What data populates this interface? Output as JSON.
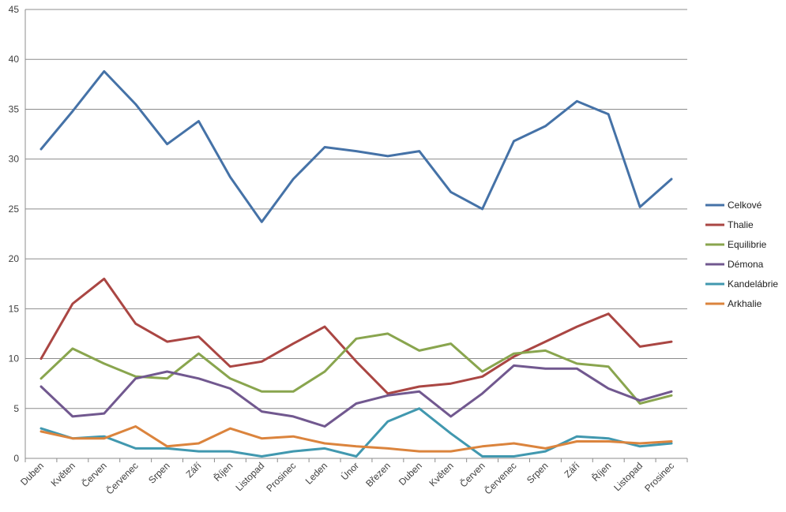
{
  "chart_data": {
    "type": "line",
    "categories": [
      "Duben",
      "Květen",
      "Červen",
      "Červenec",
      "Srpen",
      "Září",
      "Říjen",
      "Listopad",
      "Prosinec",
      "Leden",
      "Únor",
      "Březen",
      "Duben",
      "Květen",
      "Červen",
      "Červenec",
      "Srpen",
      "Září",
      "Říjen",
      "Listopad",
      "Prosinec"
    ],
    "ylim": [
      0,
      45
    ],
    "yticks": [
      0,
      5,
      10,
      15,
      20,
      25,
      30,
      35,
      40,
      45
    ],
    "grid": true,
    "legend_position": "right",
    "series": [
      {
        "name": "Celkové",
        "color": "#4572A7",
        "values": [
          31.0,
          34.8,
          38.8,
          35.5,
          31.5,
          33.8,
          28.2,
          23.7,
          28.0,
          31.2,
          30.8,
          30.3,
          30.8,
          26.7,
          25.0,
          31.8,
          33.3,
          35.8,
          34.5,
          25.2,
          28.0
        ]
      },
      {
        "name": "Thalie",
        "color": "#AA4643",
        "values": [
          10.0,
          15.5,
          18.0,
          13.5,
          11.7,
          12.2,
          9.2,
          9.7,
          11.5,
          13.2,
          9.7,
          6.5,
          7.2,
          7.5,
          8.2,
          10.2,
          11.7,
          13.2,
          14.5,
          11.2,
          11.7
        ]
      },
      {
        "name": "Equilibrie",
        "color": "#89A54E",
        "values": [
          8.0,
          11.0,
          9.5,
          8.2,
          8.0,
          10.5,
          8.0,
          6.7,
          6.7,
          8.7,
          12.0,
          12.5,
          10.8,
          11.5,
          8.7,
          10.5,
          10.8,
          9.5,
          9.2,
          5.5,
          6.3
        ]
      },
      {
        "name": "Démona",
        "color": "#71588F",
        "values": [
          7.2,
          4.2,
          4.5,
          8.0,
          8.7,
          8.0,
          7.0,
          4.7,
          4.2,
          3.2,
          5.5,
          6.3,
          6.7,
          4.2,
          6.5,
          9.3,
          9.0,
          9.0,
          7.0,
          5.8,
          6.7
        ]
      },
      {
        "name": "Kandelábrie",
        "color": "#4198AF",
        "values": [
          3.0,
          2.0,
          2.2,
          1.0,
          1.0,
          0.7,
          0.7,
          0.2,
          0.7,
          1.0,
          0.2,
          3.7,
          5.0,
          2.5,
          0.2,
          0.2,
          0.7,
          2.2,
          2.0,
          1.2,
          1.5
        ]
      },
      {
        "name": "Arkhalie",
        "color": "#DB843D",
        "values": [
          2.7,
          2.0,
          2.0,
          3.2,
          1.2,
          1.5,
          3.0,
          2.0,
          2.2,
          1.5,
          1.2,
          1.0,
          0.7,
          0.7,
          1.2,
          1.5,
          1.0,
          1.7,
          1.7,
          1.5,
          1.7
        ]
      }
    ]
  }
}
